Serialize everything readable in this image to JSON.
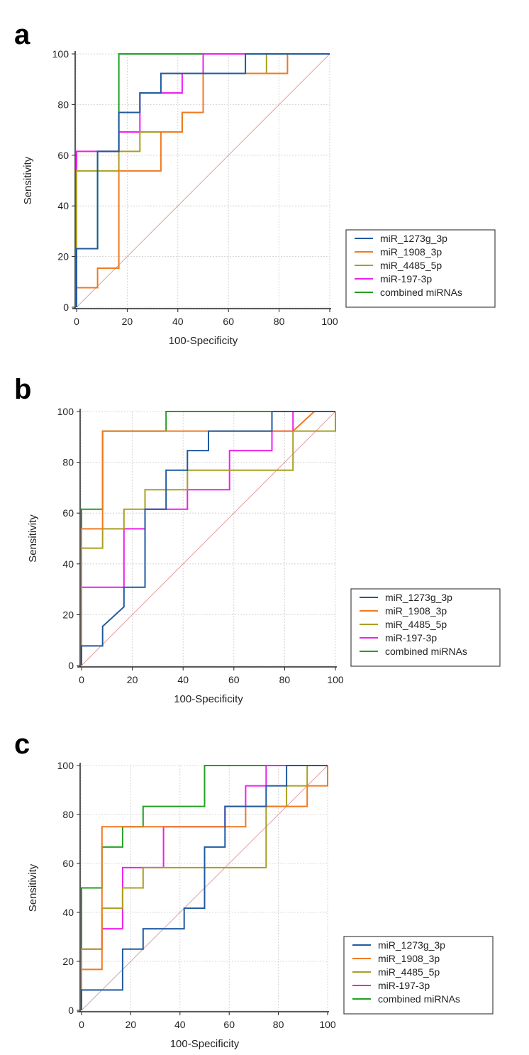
{
  "colors": {
    "miR_1273g_3p": "#1f5aa0",
    "miR_1908_3p": "#f07a22",
    "miR_4485_5p": "#a8a020",
    "miR_197_3p": "#ee1fee",
    "combined": "#22a022",
    "diagonal": "#e0a0a0",
    "grid": "#cccccc"
  },
  "chart_data": [
    {
      "panel": "a",
      "type": "line",
      "title": "",
      "xlabel": "100-Specificity",
      "ylabel": "Sensitivity",
      "xlim": [
        0,
        100
      ],
      "ylim": [
        0,
        100
      ],
      "xticks": [
        "0",
        "20",
        "40",
        "60",
        "80",
        "100"
      ],
      "yticks": [
        "0",
        "20",
        "40",
        "60",
        "80",
        "100"
      ],
      "legend_position": "bottom-right",
      "series": [
        {
          "name": "miR_1273g_3p",
          "color_key": "miR_1273g_3p",
          "points": [
            [
              0,
              0
            ],
            [
              0,
              23.1
            ],
            [
              8.3,
              23.1
            ],
            [
              8.3,
              61.5
            ],
            [
              16.7,
              61.5
            ],
            [
              16.7,
              76.9
            ],
            [
              25,
              76.9
            ],
            [
              25,
              84.6
            ],
            [
              33.3,
              84.6
            ],
            [
              33.3,
              92.3
            ],
            [
              66.7,
              92.3
            ],
            [
              66.7,
              100
            ],
            [
              100,
              100
            ]
          ]
        },
        {
          "name": "miR_1908_3p",
          "color_key": "miR_1908_3p",
          "points": [
            [
              0,
              0
            ],
            [
              0,
              7.7
            ],
            [
              8.3,
              7.7
            ],
            [
              8.3,
              15.4
            ],
            [
              16.7,
              15.4
            ],
            [
              16.7,
              53.8
            ],
            [
              33.3,
              53.8
            ],
            [
              33.3,
              69.2
            ],
            [
              41.7,
              69.2
            ],
            [
              41.7,
              76.9
            ],
            [
              50,
              76.9
            ],
            [
              50,
              92.3
            ],
            [
              83.3,
              92.3
            ],
            [
              83.3,
              100
            ],
            [
              100,
              100
            ]
          ]
        },
        {
          "name": "miR_4485_5p",
          "color_key": "miR_4485_5p",
          "points": [
            [
              0,
              0
            ],
            [
              0,
              53.8
            ],
            [
              16.7,
              53.8
            ],
            [
              16.7,
              61.5
            ],
            [
              25,
              61.5
            ],
            [
              25,
              69.2
            ],
            [
              41.7,
              69.2
            ],
            [
              41.7,
              76.9
            ],
            [
              50,
              76.9
            ],
            [
              50,
              92.3
            ],
            [
              75,
              92.3
            ],
            [
              75,
              100
            ],
            [
              100,
              100
            ]
          ]
        },
        {
          "name": "miR-197-3p",
          "color_key": "miR_197_3p",
          "points": [
            [
              0,
              0
            ],
            [
              0,
              61.5
            ],
            [
              16.7,
              61.5
            ],
            [
              16.7,
              69.2
            ],
            [
              25,
              69.2
            ],
            [
              25,
              84.6
            ],
            [
              41.7,
              84.6
            ],
            [
              41.7,
              92.3
            ],
            [
              50,
              92.3
            ],
            [
              50,
              100
            ],
            [
              100,
              100
            ]
          ]
        },
        {
          "name": "combined miRNAs",
          "color_key": "combined",
          "points": [
            [
              0,
              0
            ],
            [
              0,
              23.1
            ],
            [
              8.3,
              23.1
            ],
            [
              8.3,
              61.5
            ],
            [
              16.7,
              61.5
            ],
            [
              16.7,
              100
            ],
            [
              100,
              100
            ]
          ]
        }
      ]
    },
    {
      "panel": "b",
      "type": "line",
      "title": "",
      "xlabel": "100-Specificity",
      "ylabel": "Sensitivity",
      "xlim": [
        0,
        100
      ],
      "ylim": [
        0,
        100
      ],
      "xticks": [
        "0",
        "20",
        "40",
        "60",
        "80",
        "100"
      ],
      "yticks": [
        "0",
        "20",
        "40",
        "60",
        "80",
        "100"
      ],
      "legend_position": "bottom-right",
      "series": [
        {
          "name": "miR_1273g_3p",
          "color_key": "miR_1273g_3p",
          "points": [
            [
              0,
              0
            ],
            [
              0,
              7.7
            ],
            [
              8.3,
              7.7
            ],
            [
              8.3,
              15.4
            ],
            [
              16.7,
              23.1
            ],
            [
              16.7,
              30.8
            ],
            [
              25,
              30.8
            ],
            [
              25,
              61.5
            ],
            [
              33.3,
              61.5
            ],
            [
              33.3,
              76.9
            ],
            [
              41.7,
              76.9
            ],
            [
              41.7,
              84.6
            ],
            [
              50,
              84.6
            ],
            [
              50,
              92.3
            ],
            [
              75,
              92.3
            ],
            [
              75,
              100
            ],
            [
              100,
              100
            ]
          ]
        },
        {
          "name": "miR_1908_3p",
          "color_key": "miR_1908_3p",
          "points": [
            [
              0,
              0
            ],
            [
              0,
              53.8
            ],
            [
              8.3,
              53.8
            ],
            [
              8.3,
              92.3
            ],
            [
              83.3,
              92.3
            ],
            [
              91.7,
              100
            ],
            [
              100,
              100
            ]
          ]
        },
        {
          "name": "miR_4485_5p",
          "color_key": "miR_4485_5p",
          "points": [
            [
              0,
              0
            ],
            [
              0,
              46.2
            ],
            [
              8.3,
              46.2
            ],
            [
              8.3,
              53.8
            ],
            [
              16.7,
              53.8
            ],
            [
              16.7,
              61.5
            ],
            [
              25,
              61.5
            ],
            [
              25,
              69.2
            ],
            [
              41.7,
              69.2
            ],
            [
              41.7,
              76.9
            ],
            [
              83.3,
              76.9
            ],
            [
              83.3,
              92.3
            ],
            [
              100,
              92.3
            ],
            [
              100,
              100
            ]
          ]
        },
        {
          "name": "miR-197-3p",
          "color_key": "miR_197_3p",
          "points": [
            [
              0,
              0
            ],
            [
              0,
              30.8
            ],
            [
              16.7,
              30.8
            ],
            [
              16.7,
              53.8
            ],
            [
              25,
              53.8
            ],
            [
              25,
              61.5
            ],
            [
              41.7,
              61.5
            ],
            [
              41.7,
              69.2
            ],
            [
              58.3,
              69.2
            ],
            [
              58.3,
              84.6
            ],
            [
              75,
              84.6
            ],
            [
              75,
              92.3
            ],
            [
              83.3,
              92.3
            ],
            [
              83.3,
              100
            ],
            [
              100,
              100
            ]
          ]
        },
        {
          "name": "combined miRNAs",
          "color_key": "combined",
          "points": [
            [
              0,
              0
            ],
            [
              0,
              61.5
            ],
            [
              8.3,
              61.5
            ],
            [
              8.3,
              92.3
            ],
            [
              33.3,
              92.3
            ],
            [
              33.3,
              100
            ],
            [
              100,
              100
            ]
          ]
        }
      ]
    },
    {
      "panel": "c",
      "type": "line",
      "title": "",
      "xlabel": "100-Specificity",
      "ylabel": "Sensitivity",
      "xlim": [
        0,
        100
      ],
      "ylim": [
        0,
        100
      ],
      "xticks": [
        "0",
        "20",
        "40",
        "60",
        "80",
        "100"
      ],
      "yticks": [
        "0",
        "20",
        "40",
        "60",
        "80",
        "100"
      ],
      "legend_position": "bottom-right",
      "series": [
        {
          "name": "miR_1273g_3p",
          "color_key": "miR_1273g_3p",
          "points": [
            [
              0,
              0
            ],
            [
              0,
              8.3
            ],
            [
              16.7,
              8.3
            ],
            [
              16.7,
              25
            ],
            [
              25,
              25
            ],
            [
              25,
              33.3
            ],
            [
              41.7,
              33.3
            ],
            [
              41.7,
              41.7
            ],
            [
              50,
              41.7
            ],
            [
              50,
              66.7
            ],
            [
              58.3,
              66.7
            ],
            [
              58.3,
              83.3
            ],
            [
              75,
              83.3
            ],
            [
              75,
              91.7
            ],
            [
              83.3,
              91.7
            ],
            [
              83.3,
              100
            ],
            [
              100,
              100
            ]
          ]
        },
        {
          "name": "miR_1908_3p",
          "color_key": "miR_1908_3p",
          "points": [
            [
              0,
              0
            ],
            [
              0,
              16.7
            ],
            [
              8.3,
              16.7
            ],
            [
              8.3,
              75
            ],
            [
              66.7,
              75
            ],
            [
              66.7,
              83.3
            ],
            [
              91.7,
              83.3
            ],
            [
              91.7,
              91.7
            ],
            [
              100,
              91.7
            ],
            [
              100,
              100
            ]
          ]
        },
        {
          "name": "miR_4485_5p",
          "color_key": "miR_4485_5p",
          "points": [
            [
              0,
              0
            ],
            [
              0,
              25
            ],
            [
              8.3,
              25
            ],
            [
              8.3,
              41.7
            ],
            [
              16.7,
              41.7
            ],
            [
              16.7,
              50
            ],
            [
              25,
              50
            ],
            [
              25,
              58.3
            ],
            [
              75,
              58.3
            ],
            [
              75,
              83.3
            ],
            [
              83.3,
              83.3
            ],
            [
              83.3,
              91.7
            ],
            [
              91.7,
              91.7
            ],
            [
              91.7,
              100
            ],
            [
              100,
              100
            ]
          ]
        },
        {
          "name": "miR-197-3p",
          "color_key": "miR_197_3p",
          "points": [
            [
              0,
              0
            ],
            [
              0,
              25
            ],
            [
              8.3,
              25
            ],
            [
              8.3,
              33.3
            ],
            [
              16.7,
              33.3
            ],
            [
              16.7,
              58.3
            ],
            [
              33.3,
              58.3
            ],
            [
              33.3,
              75
            ],
            [
              58.3,
              75
            ],
            [
              58.3,
              83.3
            ],
            [
              66.7,
              83.3
            ],
            [
              66.7,
              91.7
            ],
            [
              75,
              91.7
            ],
            [
              75,
              100
            ],
            [
              100,
              100
            ]
          ]
        },
        {
          "name": "combined miRNAs",
          "color_key": "combined",
          "points": [
            [
              0,
              0
            ],
            [
              0,
              50
            ],
            [
              8.3,
              50
            ],
            [
              8.3,
              66.7
            ],
            [
              16.7,
              66.7
            ],
            [
              16.7,
              75
            ],
            [
              25,
              75
            ],
            [
              25,
              83.3
            ],
            [
              50,
              83.3
            ],
            [
              50,
              100
            ],
            [
              100,
              100
            ]
          ]
        }
      ]
    }
  ]
}
